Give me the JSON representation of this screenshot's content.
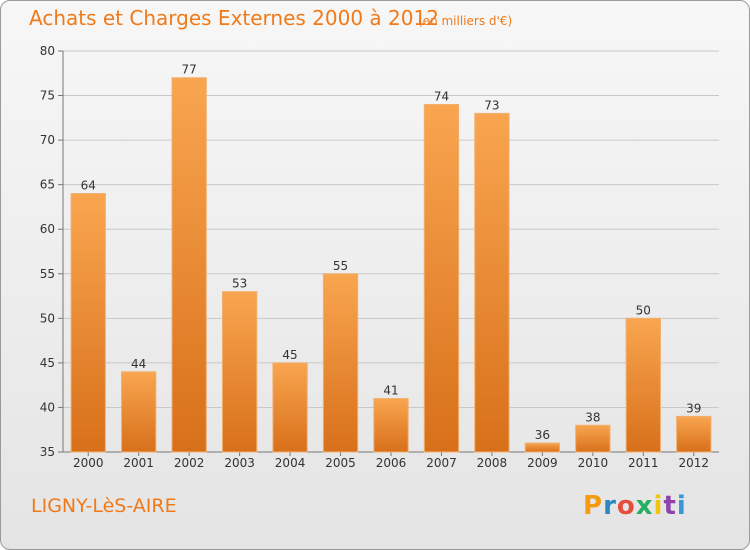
{
  "header": {
    "title": "Achats et Charges Externes 2000 à 2012",
    "subtitle": "(en milliers d'€)"
  },
  "footer": {
    "town": "LIGNY-LèS-AIRE",
    "brand_letters": [
      "P",
      "r",
      "o",
      "x",
      "i",
      "t",
      "i"
    ]
  },
  "colors": {
    "accent": "#f07a1a",
    "bar_top": "#f9a550",
    "bar_bottom": "#d8701a",
    "brand": [
      "#f39c12",
      "#2e86c1",
      "#e74c3c",
      "#27ae60",
      "#f1c40f",
      "#8e44ad",
      "#3498db"
    ]
  },
  "chart_data": {
    "type": "bar",
    "categories": [
      "2000",
      "2001",
      "2002",
      "2003",
      "2004",
      "2005",
      "2006",
      "2007",
      "2008",
      "2009",
      "2010",
      "2011",
      "2012"
    ],
    "values": [
      64,
      44,
      77,
      53,
      45,
      55,
      41,
      74,
      73,
      36,
      38,
      50,
      39
    ],
    "ylim": [
      35,
      80
    ],
    "yticks": [
      35,
      40,
      45,
      50,
      55,
      60,
      65,
      70,
      75,
      80
    ],
    "grid": true
  }
}
